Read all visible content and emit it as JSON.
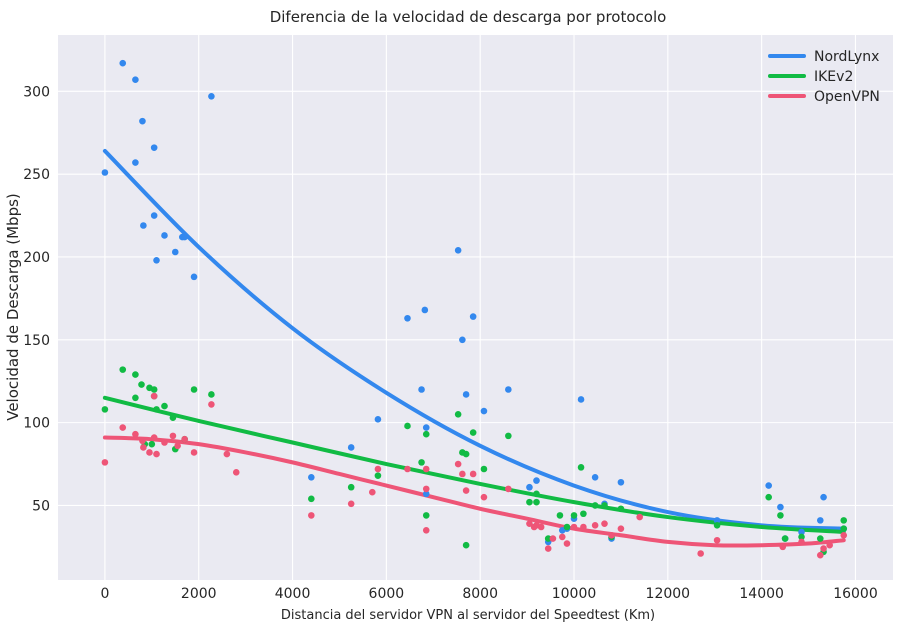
{
  "chart_data": {
    "type": "scatter",
    "title": "Diferencia de la velocidad de descarga por protocolo",
    "xlabel": "Distancia del servidor VPN al servidor del Speedtest (Km)",
    "ylabel": "Velocidad de Descarga (Mbps)",
    "xlim": [
      -1000,
      16800
    ],
    "ylim": [
      5,
      334
    ],
    "xticks": [
      0,
      2000,
      4000,
      6000,
      8000,
      10000,
      12000,
      14000,
      16000
    ],
    "yticks": [
      50,
      100,
      150,
      200,
      250,
      300
    ],
    "xtick_labels": [
      "0",
      "2000",
      "4000",
      "6000",
      "8000",
      "10000",
      "12000",
      "14000",
      "16000"
    ],
    "ytick_labels": [
      "50",
      "100",
      "150",
      "200",
      "250",
      "300"
    ],
    "grid": true,
    "legend_position": "top-right",
    "background": "#eaeaf2",
    "series": [
      {
        "name": "NordLynx",
        "color": "#3388ee",
        "points": [
          [
            0,
            251
          ],
          [
            380,
            317
          ],
          [
            650,
            307
          ],
          [
            650,
            257
          ],
          [
            800,
            282
          ],
          [
            820,
            219
          ],
          [
            1050,
            225
          ],
          [
            1050,
            266
          ],
          [
            1100,
            198
          ],
          [
            1270,
            213
          ],
          [
            1500,
            203
          ],
          [
            1650,
            212
          ],
          [
            1700,
            212
          ],
          [
            1900,
            188
          ],
          [
            2270,
            297
          ],
          [
            4400,
            67
          ],
          [
            5250,
            85
          ],
          [
            5820,
            102
          ],
          [
            6450,
            163
          ],
          [
            6750,
            120
          ],
          [
            6820,
            168
          ],
          [
            6850,
            97
          ],
          [
            6850,
            57
          ],
          [
            7530,
            204
          ],
          [
            7620,
            150
          ],
          [
            7700,
            117
          ],
          [
            7850,
            164
          ],
          [
            8080,
            107
          ],
          [
            8600,
            120
          ],
          [
            9050,
            61
          ],
          [
            9200,
            65
          ],
          [
            9450,
            28
          ],
          [
            9750,
            35
          ],
          [
            9850,
            36
          ],
          [
            10000,
            42
          ],
          [
            10150,
            114
          ],
          [
            10450,
            67
          ],
          [
            10650,
            51
          ],
          [
            10800,
            30
          ],
          [
            11000,
            64
          ],
          [
            13050,
            41
          ],
          [
            14150,
            62
          ],
          [
            14400,
            49
          ],
          [
            14500,
            30
          ],
          [
            14850,
            34
          ],
          [
            15250,
            41
          ],
          [
            15320,
            55
          ],
          [
            15750,
            36
          ]
        ],
        "trend": [
          [
            0,
            264
          ],
          [
            2000,
            206
          ],
          [
            4000,
            157
          ],
          [
            6000,
            118
          ],
          [
            8000,
            86
          ],
          [
            10000,
            62
          ],
          [
            12000,
            46
          ],
          [
            14000,
            38
          ],
          [
            15750,
            36
          ]
        ]
      },
      {
        "name": "IKEv2",
        "color": "#11bb44",
        "points": [
          [
            0,
            108
          ],
          [
            380,
            132
          ],
          [
            650,
            129
          ],
          [
            650,
            115
          ],
          [
            780,
            123
          ],
          [
            850,
            87
          ],
          [
            950,
            121
          ],
          [
            1000,
            87
          ],
          [
            1050,
            120
          ],
          [
            1050,
            116
          ],
          [
            1100,
            108
          ],
          [
            1270,
            110
          ],
          [
            1450,
            103
          ],
          [
            1500,
            84
          ],
          [
            1700,
            90
          ],
          [
            1900,
            120
          ],
          [
            2270,
            117
          ],
          [
            4400,
            54
          ],
          [
            5250,
            61
          ],
          [
            5820,
            68
          ],
          [
            6450,
            98
          ],
          [
            6750,
            76
          ],
          [
            6850,
            93
          ],
          [
            6850,
            44
          ],
          [
            7530,
            105
          ],
          [
            7620,
            82
          ],
          [
            7700,
            81
          ],
          [
            7700,
            26
          ],
          [
            7850,
            94
          ],
          [
            8080,
            72
          ],
          [
            8600,
            92
          ],
          [
            9050,
            52
          ],
          [
            9200,
            52
          ],
          [
            9200,
            57
          ],
          [
            9450,
            30
          ],
          [
            9700,
            44
          ],
          [
            9850,
            37
          ],
          [
            10000,
            44
          ],
          [
            10150,
            73
          ],
          [
            10200,
            45
          ],
          [
            10450,
            50
          ],
          [
            10650,
            50
          ],
          [
            10800,
            31
          ],
          [
            11000,
            48
          ],
          [
            13050,
            38
          ],
          [
            14150,
            55
          ],
          [
            14400,
            44
          ],
          [
            14500,
            30
          ],
          [
            14850,
            31
          ],
          [
            15250,
            30
          ],
          [
            15320,
            22
          ],
          [
            15750,
            41
          ],
          [
            15750,
            36
          ]
        ],
        "trend": [
          [
            0,
            115
          ],
          [
            2000,
            101
          ],
          [
            4000,
            88
          ],
          [
            6000,
            75
          ],
          [
            8000,
            63
          ],
          [
            10000,
            52
          ],
          [
            12000,
            43
          ],
          [
            14000,
            37
          ],
          [
            15750,
            34
          ]
        ]
      },
      {
        "name": "OpenVPN",
        "color": "#ee5577",
        "points": [
          [
            0,
            76
          ],
          [
            380,
            97
          ],
          [
            650,
            93
          ],
          [
            800,
            89
          ],
          [
            820,
            85
          ],
          [
            950,
            82
          ],
          [
            1050,
            91
          ],
          [
            1050,
            116
          ],
          [
            1100,
            81
          ],
          [
            1270,
            88
          ],
          [
            1450,
            92
          ],
          [
            1550,
            86
          ],
          [
            1700,
            90
          ],
          [
            1900,
            82
          ],
          [
            2270,
            111
          ],
          [
            2600,
            81
          ],
          [
            2800,
            70
          ],
          [
            4400,
            44
          ],
          [
            5250,
            51
          ],
          [
            5700,
            58
          ],
          [
            5820,
            72
          ],
          [
            6450,
            72
          ],
          [
            6850,
            72
          ],
          [
            6850,
            60
          ],
          [
            6850,
            35
          ],
          [
            7530,
            75
          ],
          [
            7620,
            69
          ],
          [
            7700,
            59
          ],
          [
            7850,
            69
          ],
          [
            8080,
            55
          ],
          [
            8600,
            60
          ],
          [
            9050,
            39
          ],
          [
            9150,
            37
          ],
          [
            9200,
            38
          ],
          [
            9300,
            37
          ],
          [
            9450,
            24
          ],
          [
            9550,
            30
          ],
          [
            9750,
            31
          ],
          [
            9850,
            27
          ],
          [
            10000,
            37
          ],
          [
            10200,
            37
          ],
          [
            10450,
            38
          ],
          [
            10650,
            39
          ],
          [
            10800,
            32
          ],
          [
            11000,
            36
          ],
          [
            11400,
            43
          ],
          [
            12700,
            21
          ],
          [
            13050,
            29
          ],
          [
            14450,
            25
          ],
          [
            14850,
            28
          ],
          [
            15250,
            20
          ],
          [
            15320,
            24
          ],
          [
            15450,
            26
          ],
          [
            15750,
            32
          ]
        ],
        "trend": [
          [
            0,
            91
          ],
          [
            1000,
            90
          ],
          [
            2000,
            87
          ],
          [
            3000,
            82
          ],
          [
            4000,
            76
          ],
          [
            5000,
            69
          ],
          [
            6000,
            62
          ],
          [
            7000,
            55
          ],
          [
            8000,
            48
          ],
          [
            9000,
            42
          ],
          [
            10000,
            36
          ],
          [
            11000,
            32
          ],
          [
            12000,
            28
          ],
          [
            13000,
            26
          ],
          [
            14000,
            26
          ],
          [
            15000,
            27
          ],
          [
            15750,
            29
          ]
        ]
      }
    ]
  }
}
